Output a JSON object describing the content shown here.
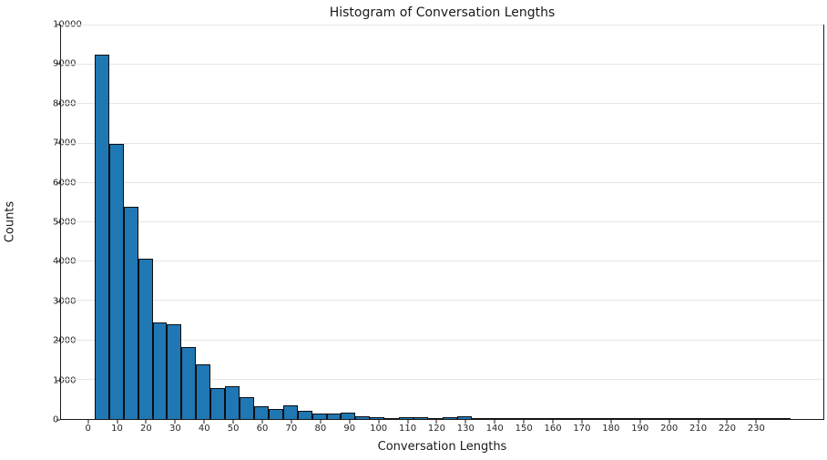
{
  "chart_data": {
    "type": "bar",
    "subtype": "histogram",
    "title": "Histogram of Conversation Lengths",
    "xlabel": "Conversation Lengths",
    "ylabel": "Counts",
    "bar_color": "#1f77b4",
    "bar_edge_color": "#0e0e0e",
    "grid": "horizontal, light gray",
    "legend": "none",
    "xlim": [
      -9.6,
      253.4
    ],
    "ylim": [
      0,
      10000
    ],
    "xticks": [
      0,
      10,
      20,
      30,
      40,
      50,
      60,
      70,
      80,
      90,
      100,
      110,
      120,
      130,
      140,
      150,
      160,
      170,
      180,
      190,
      200,
      210,
      220,
      230
    ],
    "yticks": [
      0,
      1000,
      2000,
      3000,
      4000,
      5000,
      6000,
      7000,
      8000,
      9000,
      10000
    ],
    "bin_start": 2,
    "bin_width": 5,
    "values": [
      9250,
      6980,
      5400,
      4080,
      2460,
      2410,
      1820,
      1390,
      790,
      840,
      550,
      330,
      260,
      340,
      220,
      150,
      145,
      165,
      60,
      55,
      35,
      45,
      40,
      25,
      55,
      65,
      25,
      15,
      15,
      15,
      12,
      12,
      30,
      25,
      10,
      8,
      8,
      6,
      6,
      5,
      5,
      5,
      4,
      4,
      4,
      3,
      3,
      10
    ]
  }
}
